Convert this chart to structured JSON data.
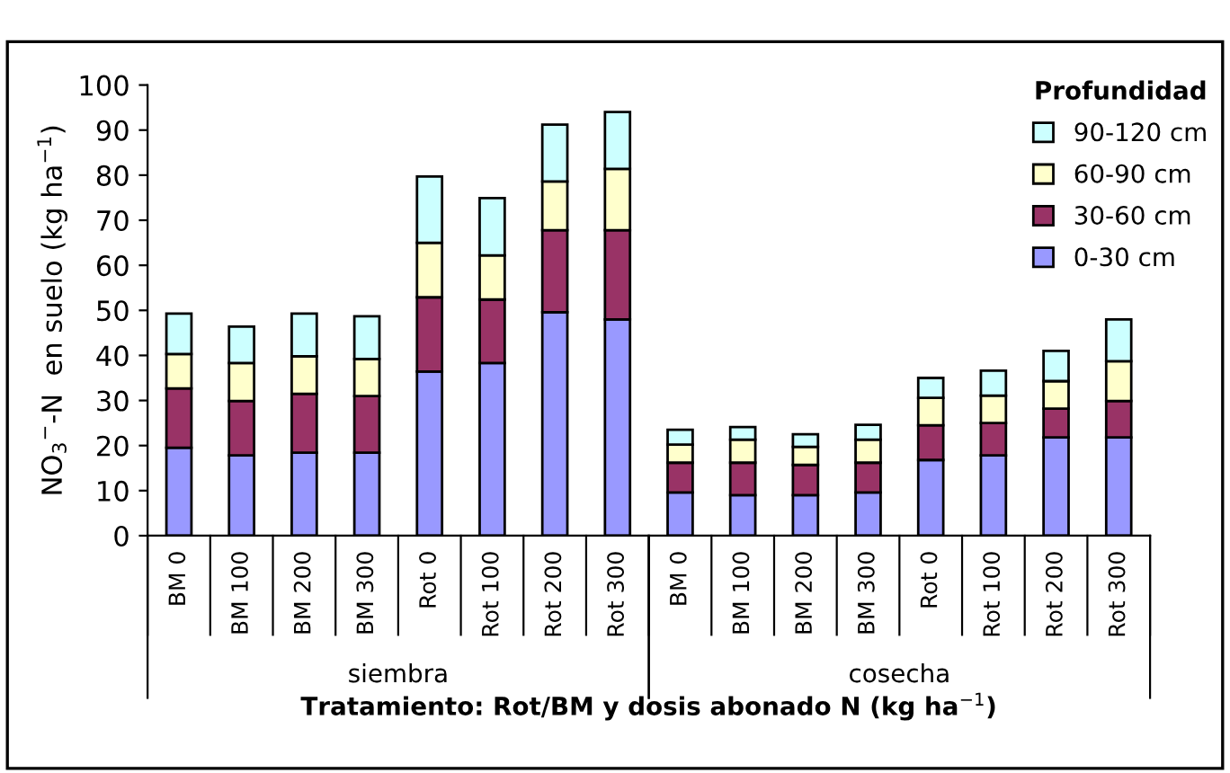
{
  "chart_data": {
    "type": "bar",
    "stacked": true,
    "categories": [
      "BM 0",
      "BM 100",
      "BM 200",
      "BM 300",
      "Rot 0",
      "Rot 100",
      "Rot 200",
      "Rot 300",
      "BM 0",
      "BM 100",
      "BM 200",
      "BM 300",
      "Rot 0",
      "Rot 100",
      "Rot 200",
      "Rot 300"
    ],
    "series": [
      {
        "name": "0-30 cm",
        "color": "#9999ff",
        "values": [
          19.5,
          17.8,
          18.4,
          18.4,
          36.4,
          38.3,
          49.6,
          48.0,
          9.6,
          9.0,
          9.0,
          9.6,
          16.8,
          17.8,
          21.8,
          21.8
        ]
      },
      {
        "name": "30-60 cm",
        "color": "#993366",
        "values": [
          13.2,
          12.1,
          13.1,
          12.6,
          16.5,
          14.1,
          18.2,
          19.8,
          6.6,
          7.2,
          6.7,
          6.6,
          7.7,
          7.2,
          6.4,
          8.1
        ]
      },
      {
        "name": "60-90 cm",
        "color": "#ffffcc",
        "values": [
          7.6,
          8.4,
          8.3,
          8.2,
          12.1,
          9.8,
          10.8,
          13.6,
          4.0,
          5.1,
          4.0,
          5.1,
          6.1,
          6.1,
          6.1,
          8.8
        ]
      },
      {
        "name": "90-120 cm",
        "color": "#ccffff",
        "values": [
          9.0,
          8.1,
          9.5,
          9.5,
          14.7,
          12.7,
          12.6,
          12.6,
          3.3,
          2.8,
          2.8,
          3.3,
          4.4,
          5.5,
          6.7,
          9.3
        ]
      }
    ],
    "ylabel": "NO$_{3}$$^{−}$-N  en suelo (kg ha$^{−1}$)",
    "xlabel": "Tratamiento: Rot/BM y dosis abonado N (kg ha$^{−1}$)",
    "legend_title": "Profundidad",
    "legend": "top right",
    "annotations": [
      "siembra",
      "cosecha"
    ],
    "ylim": [
      0,
      100
    ],
    "yticks": [
      0,
      10,
      20,
      30,
      40,
      50,
      60,
      70,
      80,
      90,
      100
    ],
    "grid": false
  }
}
